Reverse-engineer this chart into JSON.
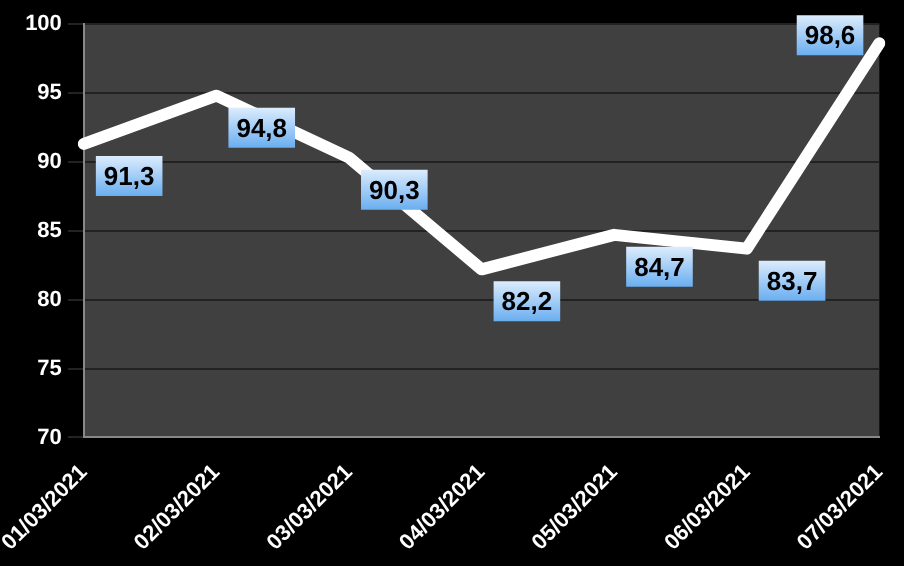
{
  "chart_data": {
    "type": "line",
    "categories": [
      "01/03/2021",
      "02/03/2021",
      "03/03/2021",
      "04/03/2021",
      "05/03/2021",
      "06/03/2021",
      "07/03/2021"
    ],
    "series": [
      {
        "color": "#ffffff",
        "values": [
          91.3,
          94.8,
          90.3,
          82.2,
          84.7,
          83.7,
          98.6
        ],
        "value_labels": [
          "91,3",
          "94,8",
          "90,3",
          "82,2",
          "84,7",
          "83,7",
          "98,6"
        ]
      }
    ],
    "ylim": [
      70,
      100
    ],
    "yticks": [
      70,
      75,
      80,
      85,
      90,
      95,
      100
    ],
    "grid": "y",
    "legend": false,
    "marker": "none",
    "line_style": "solid"
  }
}
